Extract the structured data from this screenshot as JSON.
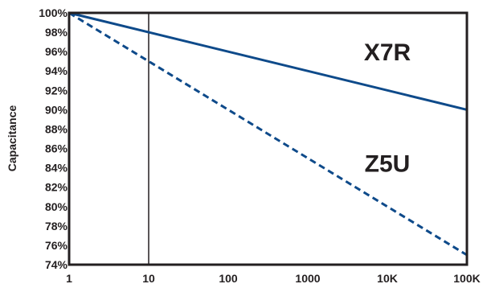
{
  "chart_data": {
    "type": "line",
    "xscale": "log",
    "x_ticks": [
      "1",
      "10",
      "100",
      "1000",
      "10K",
      "100K"
    ],
    "x_tick_values": [
      1,
      10,
      100,
      1000,
      10000,
      100000
    ],
    "xlim": [
      1,
      100000
    ],
    "ylim": [
      74,
      100
    ],
    "y_ticks": [
      "74%",
      "76%",
      "78%",
      "80%",
      "82%",
      "84%",
      "86%",
      "88%",
      "90%",
      "92%",
      "94%",
      "96%",
      "98%",
      "100%"
    ],
    "y_tick_values": [
      74,
      76,
      78,
      80,
      82,
      84,
      86,
      88,
      90,
      92,
      94,
      96,
      98,
      100
    ],
    "ylabel": "Capacitance",
    "xlabel": "",
    "grid": false,
    "reference_line_x": 10,
    "series": [
      {
        "name": "X7R",
        "x": [
          1,
          100000
        ],
        "y": [
          100,
          90
        ],
        "color": "#0e4a8a",
        "style": "solid",
        "label_position": [
          10000,
          95.1
        ]
      },
      {
        "name": "Z5U",
        "x": [
          1,
          100000
        ],
        "y": [
          100,
          75
        ],
        "color": "#0e4a8a",
        "style": "dashed",
        "label_position": [
          10000,
          83.6
        ]
      }
    ]
  }
}
